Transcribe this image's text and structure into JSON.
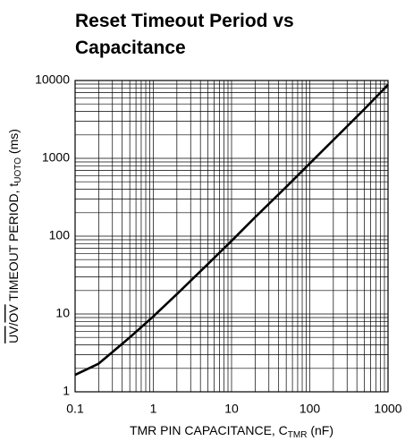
{
  "chart_data": {
    "type": "line",
    "title": [
      "Reset Timeout Period vs",
      "Capacitance"
    ],
    "x_label": [
      "TMR PIN CAPACITANCE, C",
      "TMR",
      " (nF)"
    ],
    "y_label": [
      "UV",
      "/",
      "OV",
      " TIMEOUT PERIOD, t",
      "UOTO",
      " (ms)"
    ],
    "x": [
      0.1,
      0.2,
      0.5,
      1,
      2,
      5,
      10,
      20,
      50,
      100,
      200,
      500,
      1000
    ],
    "series": [
      {
        "color": "#000000",
        "values": [
          1.65,
          2.3,
          5,
          9.3,
          18,
          44,
          87,
          175,
          430,
          860,
          1720,
          4300,
          8800
        ]
      }
    ],
    "xlim": [
      0.1,
      1000
    ],
    "ylim": [
      1,
      10000
    ],
    "xticks": [
      0.1,
      1,
      10,
      100,
      1000
    ],
    "yticks": [
      1,
      10,
      100,
      1000,
      10000
    ],
    "xscale": "log",
    "yscale": "log",
    "grid": true,
    "minor_grid": true
  }
}
